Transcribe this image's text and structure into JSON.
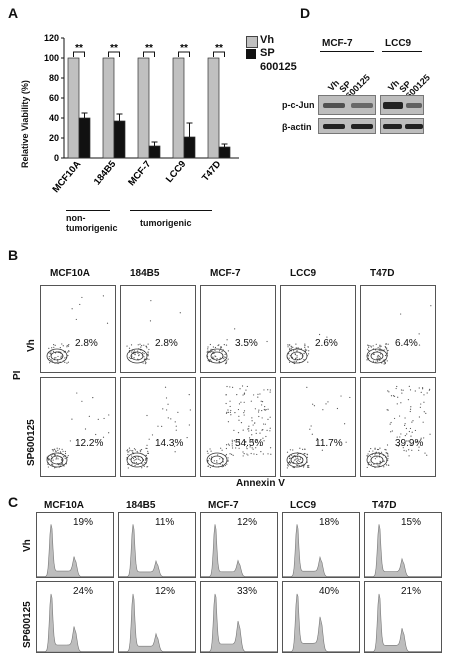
{
  "panels": {
    "a": {
      "letter": "A",
      "ylabel": "Relative Viability (%)",
      "yticks": [
        "0",
        "20",
        "40",
        "60",
        "80",
        "100",
        "120"
      ],
      "legend": [
        {
          "label": "Vh",
          "color": "#c0c0c0"
        },
        {
          "label": "SP",
          "color": "#111111"
        },
        {
          "label": "600125",
          "color": null
        }
      ],
      "significance": "**",
      "group_labels": [
        "non-\ntumorigenic",
        "tumorigenic"
      ]
    },
    "b": {
      "letter": "B",
      "cell_lines": [
        "MCF10A",
        "184B5",
        "MCF-7",
        "LCC9",
        "T47D"
      ],
      "row_labels": [
        "Vh",
        "SP600125"
      ],
      "yaxis": "PI",
      "xaxis": "Annexin V",
      "values": [
        [
          "2.8%",
          "2.8%",
          "3.5%",
          "2.6%",
          "6.4%"
        ],
        [
          "12.2%",
          "14.3%",
          "54.5%",
          "11.7%",
          "39.9%"
        ]
      ]
    },
    "c": {
      "letter": "C",
      "cell_lines": [
        "MCF10A",
        "184B5",
        "MCF-7",
        "LCC9",
        "T47D"
      ],
      "row_labels": [
        "Vh",
        "SP600125"
      ],
      "values": [
        [
          "19%",
          "11%",
          "12%",
          "18%",
          "15%"
        ],
        [
          "24%",
          "12%",
          "33%",
          "40%",
          "21%"
        ]
      ]
    },
    "d": {
      "letter": "D",
      "groups": [
        "MCF-7",
        "LCC9"
      ],
      "lane_labels": [
        "Vh",
        "SP\n600125",
        "Vh",
        "SP\n600125"
      ],
      "rows": [
        "p-c-Jun",
        "β-actin"
      ]
    }
  },
  "chart_data": {
    "type": "bar",
    "categories": [
      "MCF10A",
      "184B5",
      "MCF-7",
      "LCC9",
      "T47D"
    ],
    "series": [
      {
        "name": "Vh",
        "values": [
          100,
          100,
          100,
          100,
          100
        ]
      },
      {
        "name": "SP 600125",
        "values": [
          40,
          37,
          12,
          21,
          11
        ]
      }
    ],
    "errors": [
      [
        0,
        0,
        0,
        0,
        0
      ],
      [
        5,
        7,
        4,
        14,
        3
      ]
    ],
    "ylabel": "Relative Viability (%)",
    "ylim": [
      0,
      120
    ]
  }
}
